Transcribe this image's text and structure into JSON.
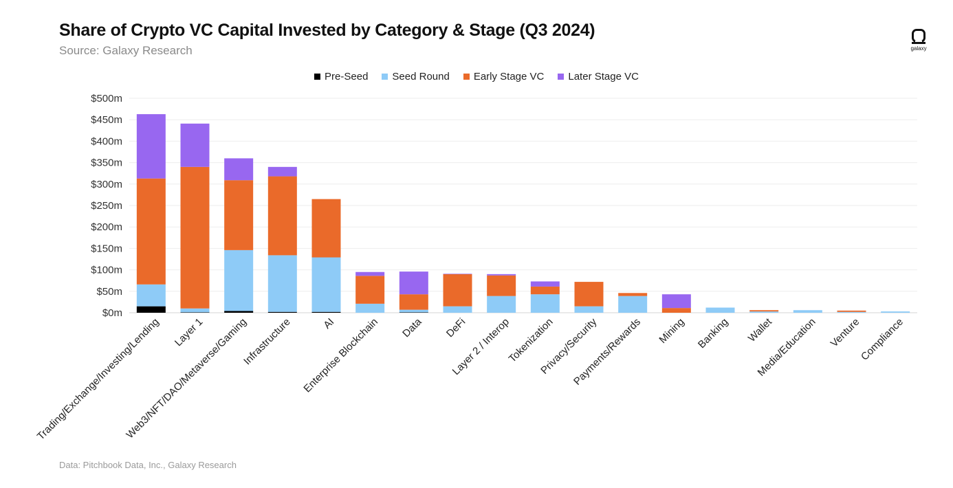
{
  "header": {
    "title": "Share of Crypto VC Capital Invested by Category & Stage (Q3 2024)",
    "subtitle": "Source: Galaxy Research"
  },
  "logo": {
    "icon": "galaxy-logo-icon",
    "text": "galaxy"
  },
  "footnote": "Data: Pitchbook Data, Inc., Galaxy Research",
  "chart_data": {
    "type": "bar",
    "stacked": true,
    "grid": true,
    "legend_position": "top-center",
    "ylim": [
      0,
      500
    ],
    "yticks": [
      0,
      50,
      100,
      150,
      200,
      250,
      300,
      350,
      400,
      450,
      500
    ],
    "ytick_labels": [
      "$0m",
      "$50m",
      "$100m",
      "$150m",
      "$200m",
      "$250m",
      "$300m",
      "$350m",
      "$400m",
      "$450m",
      "$500m"
    ],
    "categories": [
      "Trading/Exchange/Investing/Lending",
      "Layer 1",
      "Web3/NFT/DAO/Metaverse/Gaming",
      "Infrastructure",
      "AI",
      "Enterprise Blockchain",
      "Data",
      "DeFi",
      "Layer 2 / Interop",
      "Tokenization",
      "Privacy/Security",
      "Payments/Rewards",
      "Mining",
      "Banking",
      "Wallet",
      "Media/Education",
      "Venture",
      "Compliance"
    ],
    "series": [
      {
        "name": "Pre-Seed",
        "color": "#000000",
        "values": [
          15,
          1,
          4,
          2,
          2,
          0,
          1,
          0,
          0,
          0,
          0,
          0,
          0,
          0,
          0,
          0,
          0,
          0
        ]
      },
      {
        "name": "Seed Round",
        "color": "#8ecbf7",
        "values": [
          51,
          9,
          142,
          132,
          127,
          21,
          6,
          15,
          39,
          43,
          15,
          39,
          0,
          12,
          3,
          6,
          2,
          3
        ]
      },
      {
        "name": "Early Stage VC",
        "color": "#ea6a2a",
        "values": [
          247,
          330,
          163,
          184,
          136,
          65,
          36,
          75,
          48,
          18,
          57,
          7,
          11,
          0,
          3,
          0,
          3,
          0
        ]
      },
      {
        "name": "Later Stage VC",
        "color": "#9867f0",
        "values": [
          150,
          101,
          51,
          22,
          0,
          9,
          53,
          1,
          3,
          12,
          0,
          0,
          32,
          0,
          0,
          0,
          0,
          0
        ]
      }
    ]
  }
}
